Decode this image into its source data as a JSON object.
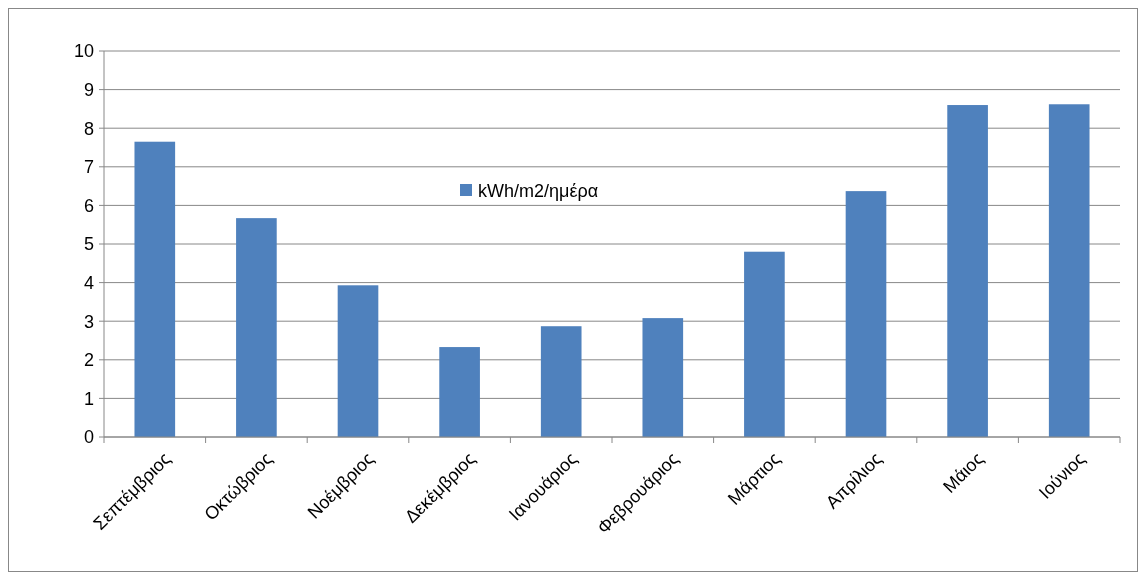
{
  "chart_data": {
    "type": "bar",
    "categories": [
      "Σεπτέμβριος",
      "Οκτώβριος",
      "Νοέμβριος",
      "Δεκέμβριος",
      "Ιανουάριος",
      "Φεβρουάριος",
      "Μάρτιος",
      "Απρίλιος",
      "Μάιος",
      "Ιούνιος"
    ],
    "series": [
      {
        "name": "kWh/m2/ημέρα",
        "color": "#4f81bd",
        "values": [
          7.65,
          5.67,
          3.93,
          2.33,
          2.87,
          3.08,
          4.8,
          6.37,
          8.6,
          8.62
        ]
      }
    ],
    "ylim": [
      0,
      10
    ],
    "yticks": [
      0,
      1,
      2,
      3,
      4,
      5,
      6,
      7,
      8,
      9,
      10
    ],
    "grid": "y",
    "legend": "top"
  }
}
